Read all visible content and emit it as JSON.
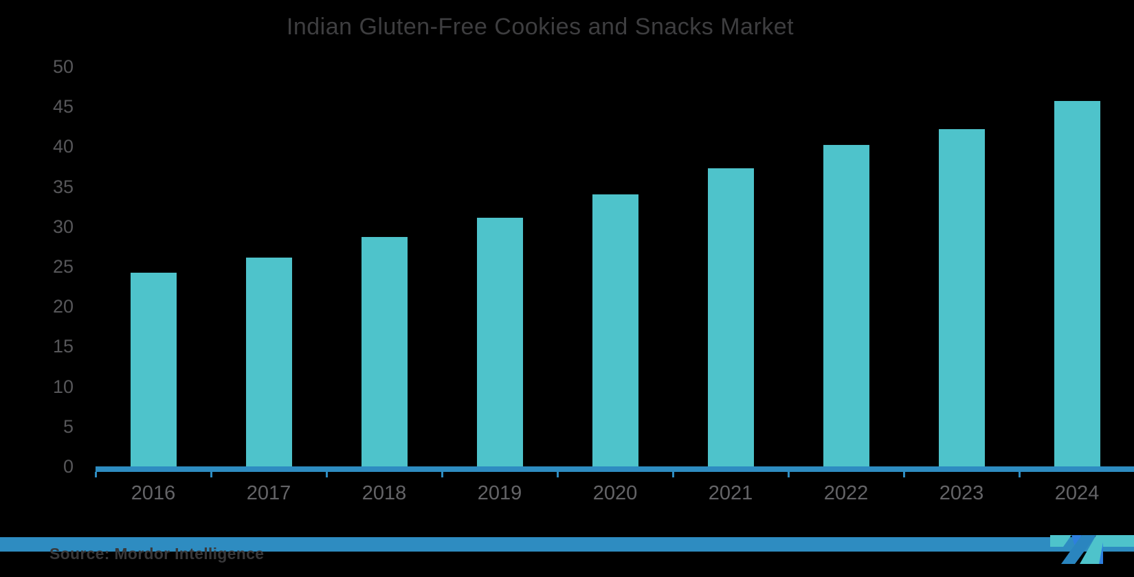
{
  "chart_data": {
    "type": "bar",
    "title": "Indian Gluten-Free Cookies and Snacks Market",
    "categories": [
      "2016",
      "2017",
      "2018",
      "2019",
      "2020",
      "2021",
      "2022",
      "2023",
      "2024"
    ],
    "values": [
      24.2,
      26.1,
      28.7,
      31.1,
      34.0,
      37.3,
      40.2,
      42.2,
      45.7
    ],
    "xlabel": "",
    "ylabel": "",
    "ylim": [
      0,
      50
    ],
    "ytick_step": 5,
    "grid": false,
    "legend_position": "none",
    "bar_color": "#4EC3CB",
    "axis_line_color": "#2E8CC1",
    "title_color": "#3E3E40",
    "y_label_color": "#57575A",
    "x_label_color": "#646467",
    "background_color": "#000000"
  },
  "footer": {
    "source": "Source: Mordor Intelligence",
    "band_color_left": "#2E8CC1",
    "band_color_right": "#4EC3CB",
    "logo": {
      "name": "mordor-intelligence-logo",
      "colors": {
        "teal": "#4EC3CB",
        "steel_blue": "#2A85BF",
        "royal_blue": "#2E7FDE"
      }
    }
  }
}
